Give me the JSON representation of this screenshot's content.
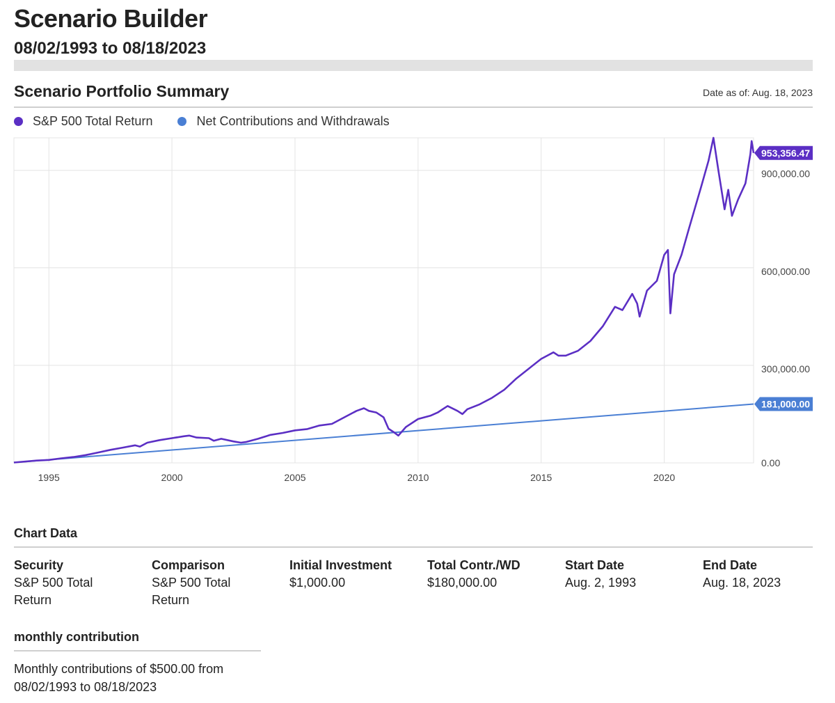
{
  "header": {
    "title": "Scenario Builder",
    "range": "08/02/1993 to 08/18/2023"
  },
  "summary": {
    "title": "Scenario Portfolio Summary",
    "date_as_of": "Date as of: Aug. 18, 2023"
  },
  "colors": {
    "sp500": "#5b2fc4",
    "contrib": "#4a7fd4",
    "grid": "#e4e4e4"
  },
  "chart_data": {
    "type": "line",
    "xlim": [
      1993.58,
      2023.63
    ],
    "ylim": [
      0,
      1000000
    ],
    "x_ticks": [
      1995,
      2000,
      2005,
      2010,
      2015,
      2020
    ],
    "x_tick_labels": [
      "1995",
      "2000",
      "2005",
      "2010",
      "2015",
      "2020"
    ],
    "y_ticks": [
      0,
      300000,
      600000,
      900000
    ],
    "y_tick_labels": [
      "0.00",
      "300,000.00",
      "600,000.00",
      "900,000.00"
    ],
    "grid": true,
    "legend_position": "top-left",
    "series": [
      {
        "name": "S&P 500 Total Return",
        "end_label": "953,356.47",
        "points": [
          [
            1993.58,
            1000
          ],
          [
            1994.5,
            7000
          ],
          [
            1995.0,
            9000
          ],
          [
            1995.5,
            14000
          ],
          [
            1996.0,
            18000
          ],
          [
            1996.5,
            24000
          ],
          [
            1997.0,
            32000
          ],
          [
            1997.5,
            40000
          ],
          [
            1998.0,
            47000
          ],
          [
            1998.5,
            54000
          ],
          [
            1998.7,
            50000
          ],
          [
            1999.0,
            62000
          ],
          [
            1999.5,
            70000
          ],
          [
            2000.0,
            76000
          ],
          [
            2000.5,
            82000
          ],
          [
            2000.7,
            84000
          ],
          [
            2001.0,
            78000
          ],
          [
            2001.5,
            76000
          ],
          [
            2001.7,
            68000
          ],
          [
            2002.0,
            74000
          ],
          [
            2002.5,
            66000
          ],
          [
            2002.8,
            62000
          ],
          [
            2003.0,
            64000
          ],
          [
            2003.5,
            74000
          ],
          [
            2004.0,
            86000
          ],
          [
            2004.5,
            92000
          ],
          [
            2005.0,
            100000
          ],
          [
            2005.5,
            104000
          ],
          [
            2006.0,
            115000
          ],
          [
            2006.5,
            120000
          ],
          [
            2007.0,
            140000
          ],
          [
            2007.5,
            160000
          ],
          [
            2007.8,
            168000
          ],
          [
            2008.0,
            160000
          ],
          [
            2008.3,
            155000
          ],
          [
            2008.6,
            140000
          ],
          [
            2008.8,
            105000
          ],
          [
            2009.0,
            95000
          ],
          [
            2009.2,
            84000
          ],
          [
            2009.5,
            110000
          ],
          [
            2010.0,
            135000
          ],
          [
            2010.5,
            145000
          ],
          [
            2010.8,
            155000
          ],
          [
            2011.2,
            175000
          ],
          [
            2011.6,
            160000
          ],
          [
            2011.8,
            150000
          ],
          [
            2012.0,
            165000
          ],
          [
            2012.5,
            180000
          ],
          [
            2013.0,
            200000
          ],
          [
            2013.5,
            225000
          ],
          [
            2014.0,
            260000
          ],
          [
            2014.5,
            290000
          ],
          [
            2015.0,
            320000
          ],
          [
            2015.5,
            340000
          ],
          [
            2015.7,
            330000
          ],
          [
            2016.0,
            330000
          ],
          [
            2016.5,
            345000
          ],
          [
            2017.0,
            375000
          ],
          [
            2017.5,
            420000
          ],
          [
            2018.0,
            480000
          ],
          [
            2018.3,
            470000
          ],
          [
            2018.7,
            520000
          ],
          [
            2018.9,
            490000
          ],
          [
            2019.0,
            450000
          ],
          [
            2019.3,
            530000
          ],
          [
            2019.7,
            560000
          ],
          [
            2020.0,
            640000
          ],
          [
            2020.15,
            655000
          ],
          [
            2020.25,
            460000
          ],
          [
            2020.4,
            580000
          ],
          [
            2020.7,
            640000
          ],
          [
            2021.0,
            720000
          ],
          [
            2021.5,
            850000
          ],
          [
            2021.8,
            930000
          ],
          [
            2022.0,
            1000000
          ],
          [
            2022.2,
            900000
          ],
          [
            2022.45,
            780000
          ],
          [
            2022.6,
            840000
          ],
          [
            2022.75,
            760000
          ],
          [
            2023.0,
            810000
          ],
          [
            2023.3,
            860000
          ],
          [
            2023.5,
            950000
          ],
          [
            2023.55,
            990000
          ],
          [
            2023.63,
            953356.47
          ]
        ]
      },
      {
        "name": "Net Contributions and Withdrawals",
        "end_label": "181,000.00",
        "points": [
          [
            1993.58,
            1000
          ],
          [
            2023.63,
            181000
          ]
        ]
      }
    ]
  },
  "chart_data_section": {
    "title": "Chart Data",
    "columns": [
      {
        "header": "Security",
        "lines": [
          "S&P 500 Total",
          "Return"
        ]
      },
      {
        "header": "Comparison",
        "lines": [
          "S&P 500 Total",
          "Return"
        ]
      },
      {
        "header": "Initial Investment",
        "lines": [
          "$1,000.00"
        ]
      },
      {
        "header": "Total Contr./WD",
        "lines": [
          "$180,000.00"
        ]
      },
      {
        "header": "Start Date",
        "lines": [
          "Aug. 2, 1993"
        ]
      },
      {
        "header": "End Date",
        "lines": [
          "Aug. 18, 2023"
        ]
      }
    ]
  },
  "monthly": {
    "title": "monthly contribution",
    "lines": [
      "Monthly contributions of $500.00 from",
      "08/02/1993 to 08/18/2023"
    ]
  }
}
